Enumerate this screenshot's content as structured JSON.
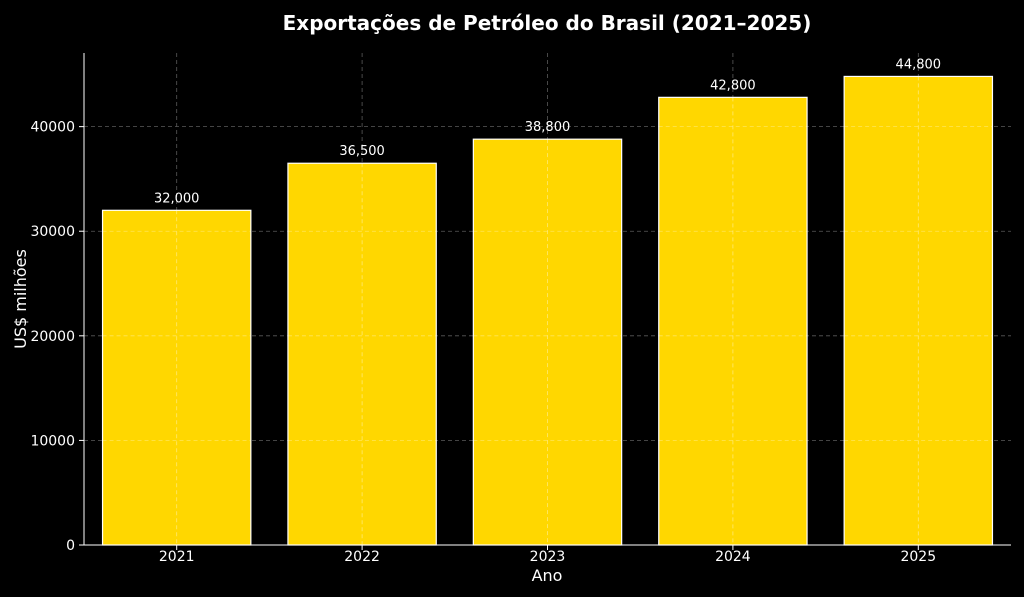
{
  "chart_data": {
    "type": "bar",
    "title": "Exportações de Petróleo do Brasil (2021–2025)",
    "xlabel": "Ano",
    "ylabel": "US$ milhões",
    "categories": [
      "2021",
      "2022",
      "2023",
      "2024",
      "2025"
    ],
    "values": [
      32000,
      36500,
      38800,
      42800,
      44800
    ],
    "data_labels": [
      "32,000",
      "36,500",
      "38,800",
      "42,800",
      "44,800"
    ],
    "ylim": [
      0,
      47040
    ],
    "yticks": [
      0,
      10000,
      20000,
      30000,
      40000
    ],
    "ytick_labels": [
      "0",
      "10000",
      "20000",
      "30000",
      "40000"
    ],
    "grid": true,
    "bar_color": "#FFD700",
    "bar_edge_color": "#FFFFFF",
    "background_color": "#000000",
    "text_color": "#FFFFFF"
  }
}
